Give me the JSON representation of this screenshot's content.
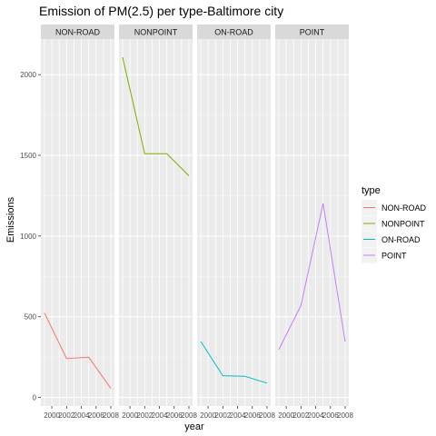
{
  "chart_data": {
    "type": "line",
    "title": "Emission of PM(2.5) per type-Baltimore city",
    "xlabel": "year",
    "ylabel": "Emissions",
    "x_ticks": [
      "1999",
      "2002",
      "2005",
      "2008"
    ],
    "x_tick_labels": [
      "2000",
      "2002",
      "2004",
      "2006",
      "2008"
    ],
    "y_ticks": [
      "0",
      "500",
      "1000",
      "1500",
      "2000"
    ],
    "ylim": [
      0,
      2110
    ],
    "grid": true,
    "facets": [
      "NON-ROAD",
      "NONPOINT",
      "ON-ROAD",
      "POINT"
    ],
    "legend": {
      "title": "type",
      "placement": "right",
      "entries": [
        "NON-ROAD",
        "NONPOINT",
        "ON-ROAD",
        "POINT"
      ]
    },
    "series": [
      {
        "name": "NON-ROAD",
        "color": "#F8766D",
        "x": [
          1999,
          2002,
          2005,
          2008
        ],
        "values": [
          522.94,
          240.85,
          248.93,
          55.82
        ]
      },
      {
        "name": "NONPOINT",
        "color": "#7CAE00",
        "x": [
          1999,
          2002,
          2005,
          2008
        ],
        "values": [
          2107.63,
          1509.5,
          1509.5,
          1373.21
        ]
      },
      {
        "name": "ON-ROAD",
        "color": "#00BFC4",
        "x": [
          1999,
          2002,
          2005,
          2008
        ],
        "values": [
          346.82,
          134.31,
          130.43,
          88.28
        ]
      },
      {
        "name": "POINT",
        "color": "#C77CFF",
        "x": [
          1999,
          2002,
          2005,
          2008
        ],
        "values": [
          296.8,
          569.26,
          1202.49,
          344.98
        ]
      }
    ]
  }
}
